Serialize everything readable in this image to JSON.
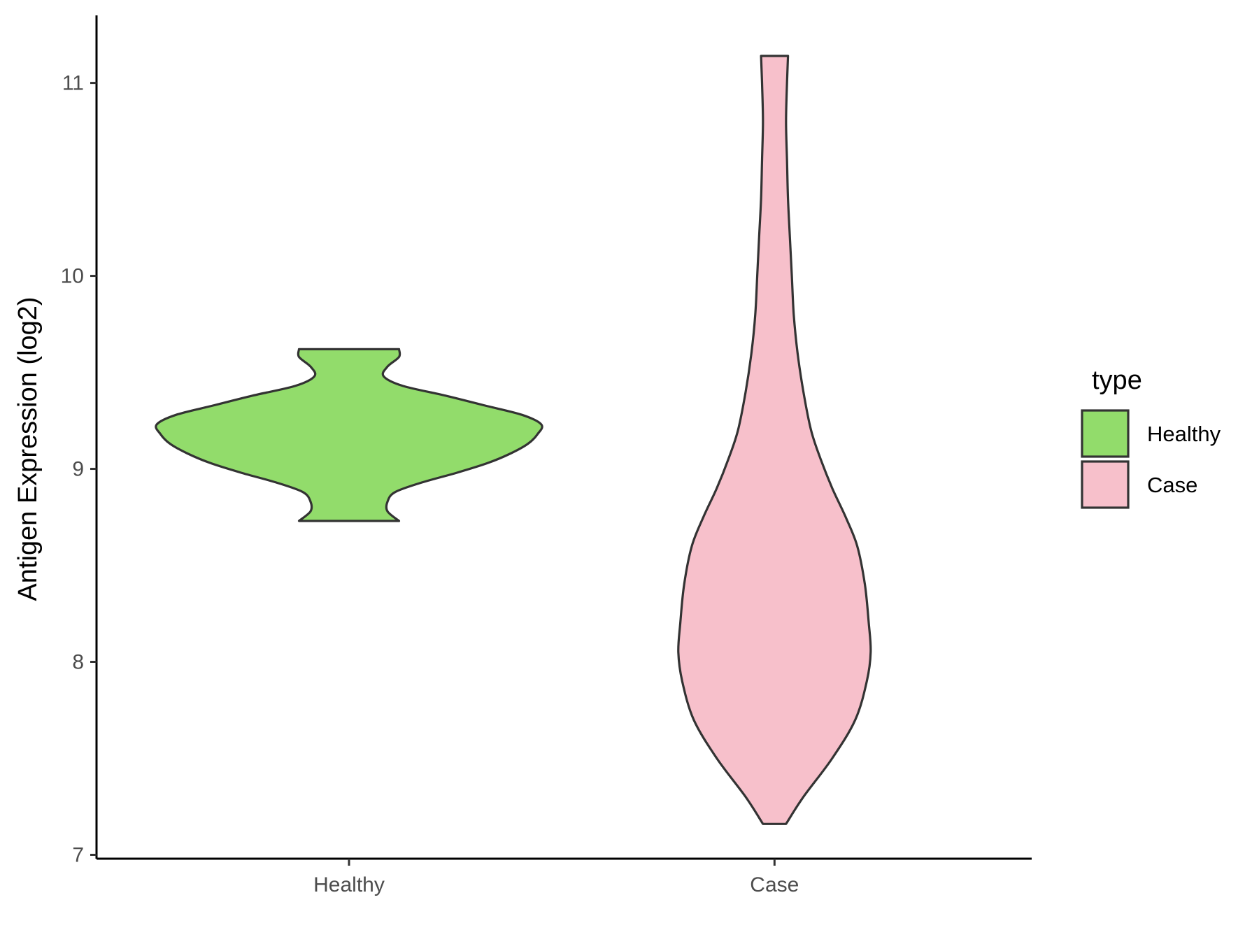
{
  "chart_data": {
    "type": "violin",
    "xlabel": "",
    "ylabel": "Antigen Expression (log2)",
    "ylim": [
      6.98,
      11.35
    ],
    "yticks": [
      "7",
      "8",
      "9",
      "10",
      "11"
    ],
    "categories": [
      "Healthy",
      "Case"
    ],
    "legend": {
      "title": "type",
      "position": "right",
      "items": [
        {
          "label": "Healthy",
          "color": "#92dc6b"
        },
        {
          "label": "Case",
          "color": "#f7c0cb"
        }
      ]
    },
    "grid": false,
    "series": [
      {
        "name": "Healthy",
        "color": "#92dc6b",
        "min": 8.73,
        "max": 9.62,
        "density_profile": [
          [
            8.73,
            0.26
          ],
          [
            8.78,
            0.2
          ],
          [
            8.83,
            0.2
          ],
          [
            8.88,
            0.24
          ],
          [
            8.93,
            0.38
          ],
          [
            8.98,
            0.56
          ],
          [
            9.03,
            0.72
          ],
          [
            9.08,
            0.84
          ],
          [
            9.13,
            0.93
          ],
          [
            9.18,
            0.98
          ],
          [
            9.23,
            1.0
          ],
          [
            9.28,
            0.9
          ],
          [
            9.33,
            0.7
          ],
          [
            9.38,
            0.5
          ],
          [
            9.43,
            0.28
          ],
          [
            9.48,
            0.18
          ],
          [
            9.53,
            0.2
          ],
          [
            9.58,
            0.26
          ],
          [
            9.62,
            0.26
          ]
        ]
      },
      {
        "name": "Case",
        "color": "#f7c0cb",
        "min": 7.16,
        "max": 11.14,
        "density_profile": [
          [
            7.16,
            0.06
          ],
          [
            7.3,
            0.15
          ],
          [
            7.5,
            0.3
          ],
          [
            7.7,
            0.42
          ],
          [
            7.9,
            0.48
          ],
          [
            8.05,
            0.5
          ],
          [
            8.2,
            0.49
          ],
          [
            8.4,
            0.47
          ],
          [
            8.6,
            0.43
          ],
          [
            8.75,
            0.37
          ],
          [
            8.9,
            0.3
          ],
          [
            9.05,
            0.24
          ],
          [
            9.2,
            0.19
          ],
          [
            9.4,
            0.15
          ],
          [
            9.6,
            0.12
          ],
          [
            9.8,
            0.1
          ],
          [
            10.0,
            0.09
          ],
          [
            10.2,
            0.08
          ],
          [
            10.4,
            0.07
          ],
          [
            10.6,
            0.065
          ],
          [
            10.8,
            0.06
          ],
          [
            11.0,
            0.065
          ],
          [
            11.14,
            0.07
          ]
        ]
      }
    ]
  }
}
